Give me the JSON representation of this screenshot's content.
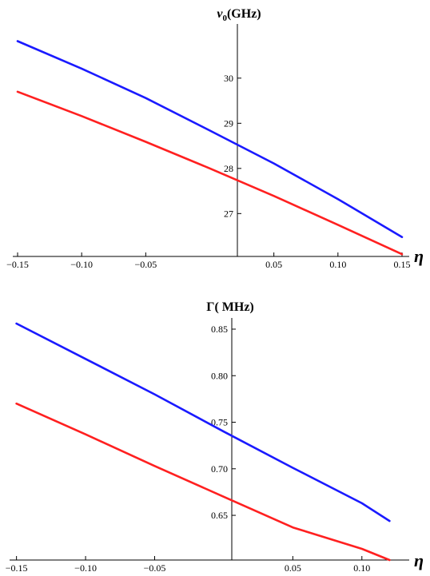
{
  "chart_data": [
    {
      "type": "line",
      "title": "",
      "ylabel_main": "ν",
      "ylabel_sub": "0",
      "ylabel_unit": "(GHz)",
      "xlabel": "η",
      "xlim": [
        -0.155,
        0.155
      ],
      "ylim": [
        26.05,
        31.2
      ],
      "xticks": [
        -0.15,
        -0.1,
        -0.05,
        0.05,
        0.1,
        0.15
      ],
      "xtick_labels": [
        "−0.15",
        "−0.10",
        "−0.05",
        "0.05",
        "0.10",
        "0.15"
      ],
      "yticks": [
        27,
        28,
        29,
        30
      ],
      "ytick_labels": [
        "27",
        "28",
        "29",
        "30"
      ],
      "grid": false,
      "series": [
        {
          "color": "#1a1aff",
          "x": [
            -0.15,
            -0.1,
            -0.05,
            0.0,
            0.05,
            0.1,
            0.15
          ],
          "y": [
            30.82,
            30.21,
            29.56,
            28.84,
            28.11,
            27.32,
            26.48
          ]
        },
        {
          "color": "#ff2020",
          "x": [
            -0.15,
            -0.1,
            -0.05,
            0.0,
            0.05,
            0.1,
            0.15
          ],
          "y": [
            29.7,
            29.16,
            28.59,
            28.0,
            27.39,
            26.75,
            26.1
          ]
        }
      ]
    },
    {
      "type": "line",
      "title": "",
      "ylabel_main": "Γ",
      "ylabel_sub": "",
      "ylabel_unit": "( MHz)",
      "xlabel": "η",
      "xlim": [
        -0.155,
        0.125
      ],
      "ylim": [
        0.602,
        0.862
      ],
      "xticks": [
        -0.15,
        -0.1,
        -0.05,
        0.05,
        0.1
      ],
      "xtick_labels": [
        "−0.15",
        "−0.10",
        "−0.05",
        "0.05",
        "0.10"
      ],
      "yticks": [
        0.65,
        0.7,
        0.75,
        0.8,
        0.85
      ],
      "ytick_labels": [
        "0.65",
        "0.70",
        "0.75",
        "0.80",
        "0.85"
      ],
      "grid": false,
      "series": [
        {
          "color": "#1a1aff",
          "x": [
            -0.15,
            -0.1,
            -0.05,
            0.0,
            0.05,
            0.1,
            0.12
          ],
          "y": [
            0.856,
            0.818,
            0.78,
            0.74,
            0.701,
            0.663,
            0.644
          ]
        },
        {
          "color": "#ff2020",
          "x": [
            -0.15,
            -0.1,
            -0.05,
            0.0,
            0.05,
            0.1,
            0.12
          ],
          "y": [
            0.77,
            0.737,
            0.703,
            0.67,
            0.637,
            0.614,
            0.602
          ]
        }
      ]
    }
  ]
}
